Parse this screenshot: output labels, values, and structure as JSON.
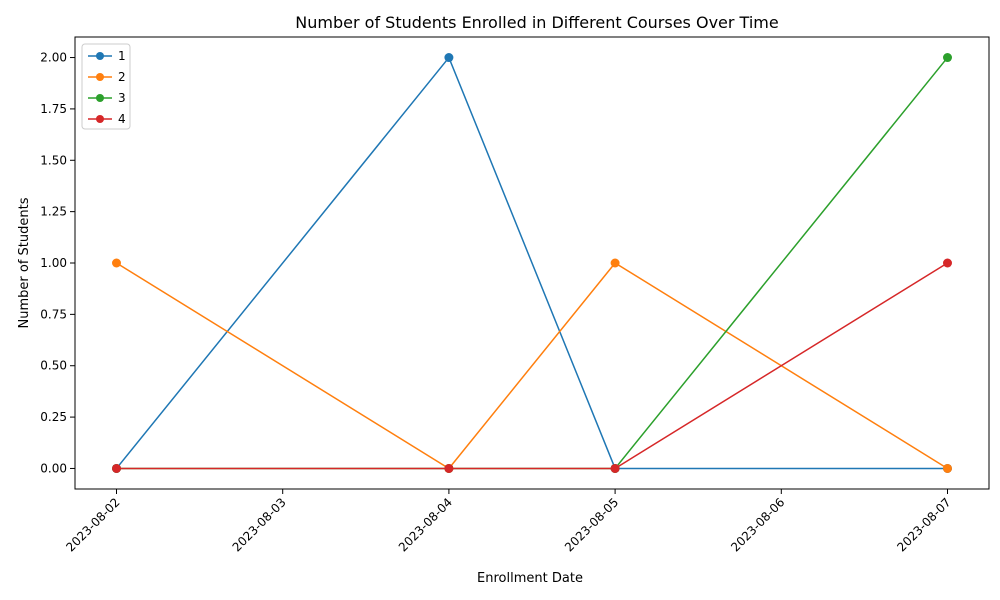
{
  "chart_data": {
    "type": "line",
    "title": "Number of Students Enrolled in Different Courses Over Time",
    "xlabel": "Enrollment Date",
    "ylabel": "Number of Students",
    "x_ticks": [
      "2023-08-02",
      "2023-08-03",
      "2023-08-04",
      "2023-08-05",
      "2023-08-06",
      "2023-08-07"
    ],
    "y_ticks": [
      "0.00",
      "0.25",
      "0.50",
      "0.75",
      "1.00",
      "1.25",
      "1.50",
      "1.75",
      "2.00"
    ],
    "ylim": [
      -0.1,
      2.1
    ],
    "xlim": [
      "2023-08-02",
      "2023-08-07"
    ],
    "grid": false,
    "legend_position": "top-left",
    "x": [
      "2023-08-02",
      "2023-08-04",
      "2023-08-05",
      "2023-08-07"
    ],
    "series": [
      {
        "name": "1",
        "color": "#1f77b4",
        "values": [
          0,
          2,
          0,
          0
        ]
      },
      {
        "name": "2",
        "color": "#ff7f0e",
        "values": [
          1,
          0,
          1,
          0
        ]
      },
      {
        "name": "3",
        "color": "#2ca02c",
        "values": [
          0,
          0,
          0,
          2
        ]
      },
      {
        "name": "4",
        "color": "#d62728",
        "values": [
          0,
          0,
          0,
          1
        ]
      }
    ]
  }
}
